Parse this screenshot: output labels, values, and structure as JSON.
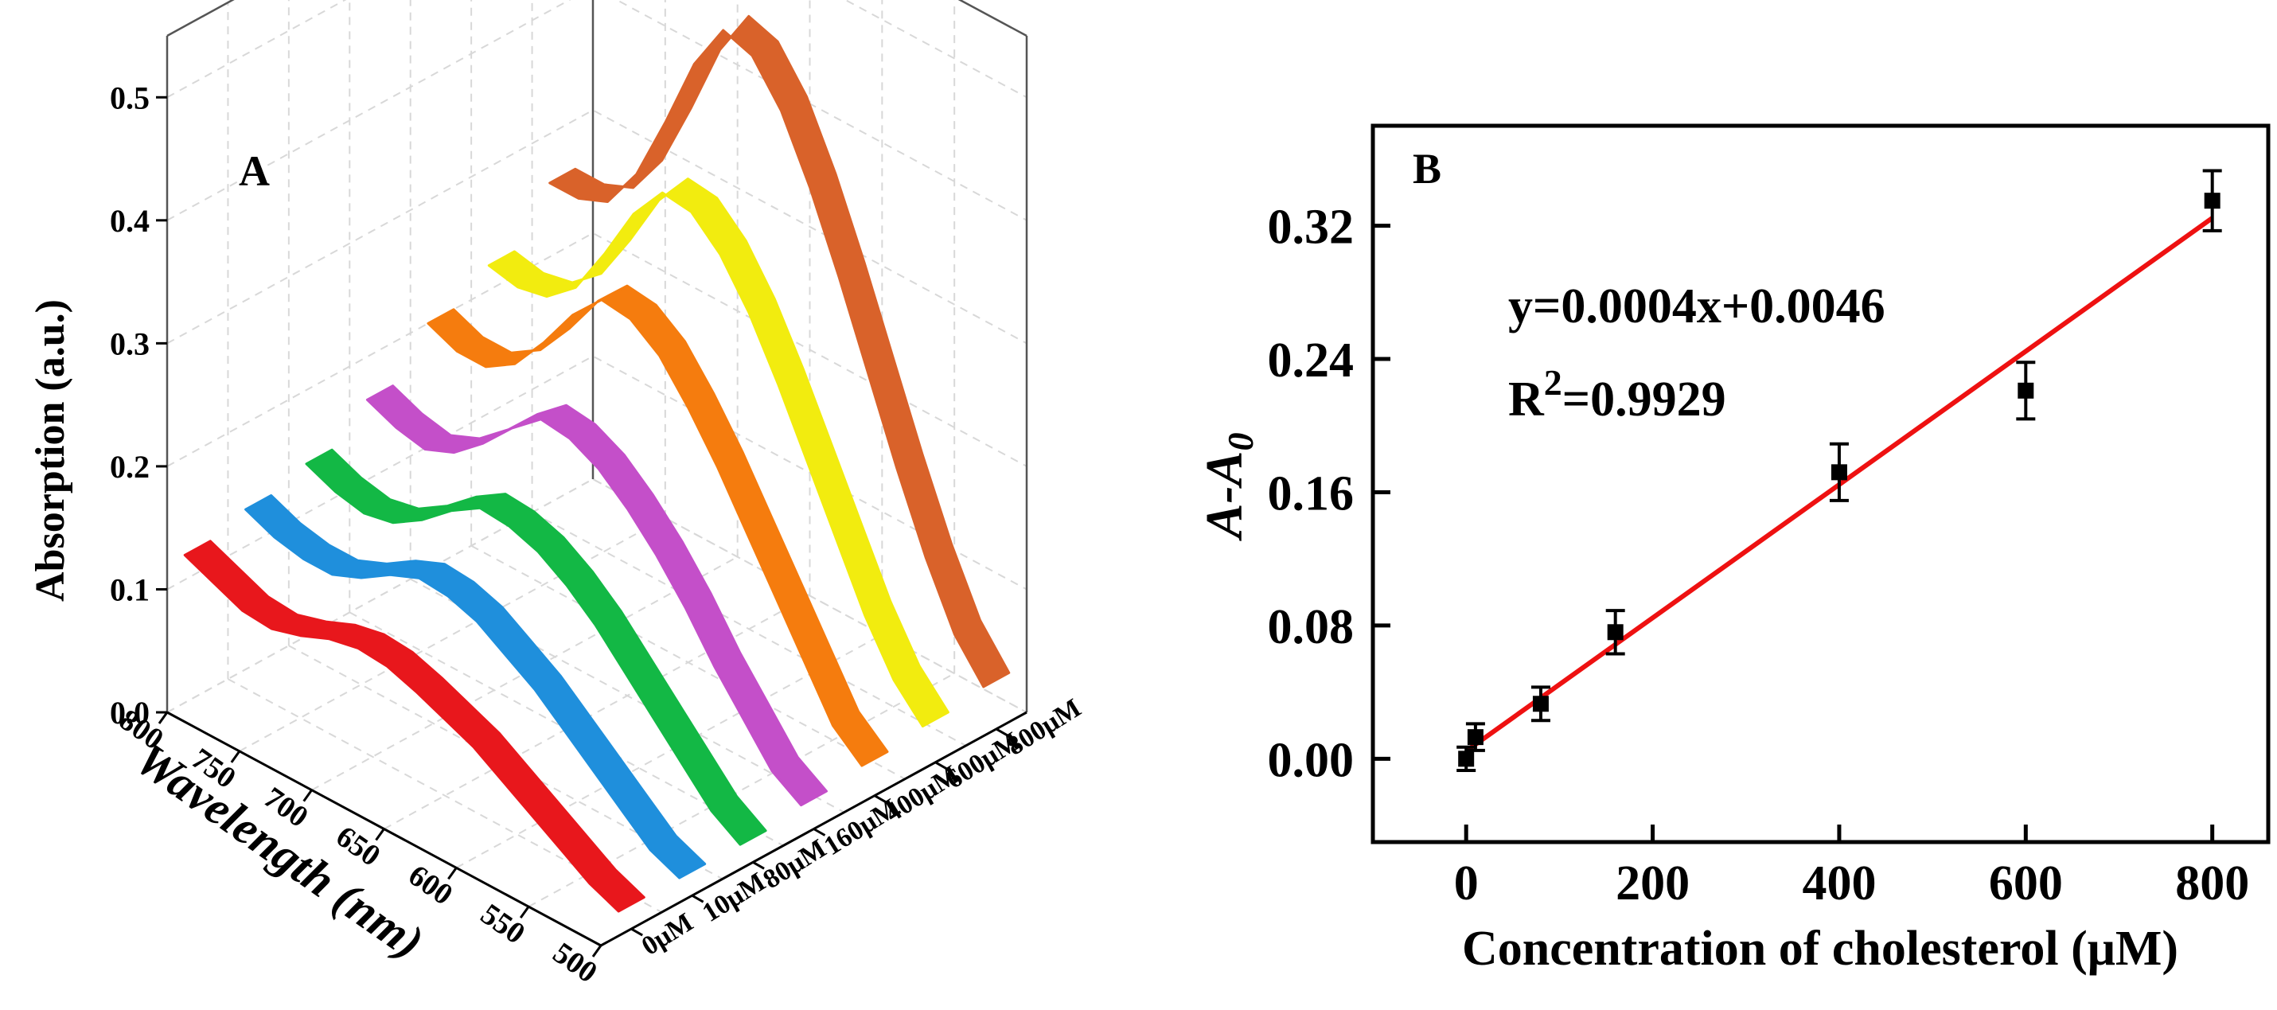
{
  "chart_data": [
    {
      "type": "line",
      "panel_label": "A",
      "title": "",
      "projection": "3d-waterfall",
      "ylabel": "Absorption (a.u.)",
      "xlabel": "Wavelength (nm)",
      "zlabel": "",
      "x_ticks": [
        "800",
        "750",
        "700",
        "650",
        "600",
        "550",
        "500"
      ],
      "y_ticks": [
        "0.0",
        "0.1",
        "0.2",
        "0.3",
        "0.4",
        "0.5"
      ],
      "ylim": [
        0,
        0.55
      ],
      "xlim": [
        500,
        800
      ],
      "wavelengths": [
        500,
        520,
        540,
        560,
        580,
        600,
        620,
        640,
        660,
        680,
        700,
        720,
        740,
        760,
        780,
        800
      ],
      "series": [
        {
          "name": "0μM",
          "color": "#e8171c",
          "values": [
            0.02,
            0.03,
            0.045,
            0.06,
            0.075,
            0.09,
            0.1,
            0.11,
            0.118,
            0.12,
            0.115,
            0.105,
            0.098,
            0.1,
            0.11,
            0.12
          ]
        },
        {
          "name": "10μM",
          "color": "#1f8fdc",
          "values": [
            0.02,
            0.03,
            0.05,
            0.07,
            0.09,
            0.11,
            0.125,
            0.14,
            0.148,
            0.15,
            0.14,
            0.125,
            0.115,
            0.115,
            0.12,
            0.13
          ]
        },
        {
          "name": "80μM",
          "color": "#13b845",
          "values": [
            0.02,
            0.035,
            0.06,
            0.085,
            0.11,
            0.135,
            0.155,
            0.17,
            0.178,
            0.18,
            0.165,
            0.145,
            0.13,
            0.125,
            0.13,
            0.14
          ]
        },
        {
          "name": "160μM",
          "color": "#c44fc9",
          "values": [
            0.025,
            0.04,
            0.07,
            0.1,
            0.135,
            0.165,
            0.19,
            0.21,
            0.222,
            0.225,
            0.205,
            0.18,
            0.16,
            0.15,
            0.155,
            0.165
          ]
        },
        {
          "name": "400μM",
          "color": "#f57c0e",
          "values": [
            0.03,
            0.05,
            0.09,
            0.13,
            0.17,
            0.21,
            0.245,
            0.275,
            0.292,
            0.295,
            0.27,
            0.235,
            0.205,
            0.19,
            0.19,
            0.2
          ]
        },
        {
          "name": "600μM",
          "color": "#f2ec0f",
          "values": [
            0.035,
            0.06,
            0.1,
            0.15,
            0.2,
            0.25,
            0.295,
            0.33,
            0.352,
            0.355,
            0.325,
            0.28,
            0.24,
            0.22,
            0.215,
            0.22
          ]
        },
        {
          "name": "800μM",
          "color": "#d9622a",
          "values": [
            0.04,
            0.07,
            0.12,
            0.18,
            0.245,
            0.31,
            0.37,
            0.42,
            0.452,
            0.46,
            0.42,
            0.36,
            0.305,
            0.27,
            0.26,
            0.26
          ]
        }
      ]
    },
    {
      "type": "scatter",
      "panel_label": "B",
      "title": "",
      "xlabel": "Concentration of cholesterol (μM)",
      "ylabel_main": "A-A",
      "ylabel_sub": "0",
      "xlim": [
        -100,
        860
      ],
      "ylim": [
        -0.05,
        0.38
      ],
      "x_ticks": [
        0,
        200,
        400,
        600,
        800
      ],
      "x_tick_labels": [
        "0",
        "200",
        "400",
        "600",
        "800"
      ],
      "y_ticks": [
        0,
        0.08,
        0.16,
        0.24,
        0.32
      ],
      "y_tick_labels": [
        "0.00",
        "0.08",
        "0.16",
        "0.24",
        "0.32"
      ],
      "points": [
        {
          "x": 0,
          "y": 0.0,
          "err": 0.007
        },
        {
          "x": 10,
          "y": 0.013,
          "err": 0.008
        },
        {
          "x": 80,
          "y": 0.033,
          "err": 0.01
        },
        {
          "x": 160,
          "y": 0.076,
          "err": 0.013
        },
        {
          "x": 400,
          "y": 0.172,
          "err": 0.017
        },
        {
          "x": 600,
          "y": 0.221,
          "err": 0.017
        },
        {
          "x": 800,
          "y": 0.335,
          "err": 0.018
        }
      ],
      "fit": {
        "slope": 0.0004,
        "intercept": 0.0046,
        "x_range": [
          0,
          800
        ],
        "color": "#ee1111"
      },
      "equation": "y=0.0004x+0.0046",
      "r2_prefix": "R",
      "r2_sup": "2",
      "r2_value": "=0.9929"
    }
  ]
}
